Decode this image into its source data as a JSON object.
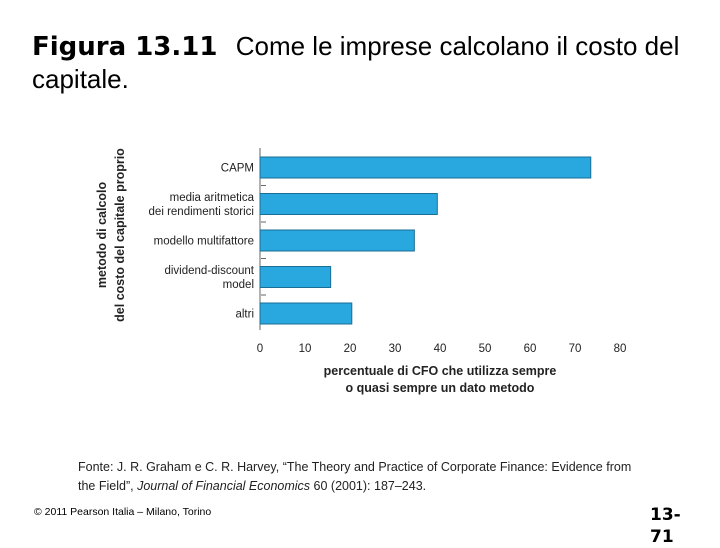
{
  "slide": {
    "figure_label": "Figura 13.11",
    "caption": "Come le imprese calcolano il costo del capitale.",
    "source_prefix": "Fonte: J. R. Graham e C. R. Harvey, “The Theory and Practice of Corporate Finance: Evidence from the Field”, ",
    "source_journal": "Journal of Financial Economics",
    "source_suffix": " 60 (2001): 187–243.",
    "copyright": "© 2011 Pearson Italia – Milano, Torino",
    "page_number_line1": "13-",
    "page_number_line2": "71"
  },
  "chart_data": {
    "type": "bar",
    "orientation": "horizontal",
    "categories": [
      [
        "CAPM"
      ],
      [
        "media aritmetica",
        "dei rendimenti storici"
      ],
      [
        "modello multifattore"
      ],
      [
        "dividend-discount",
        "model"
      ],
      [
        "altri"
      ]
    ],
    "values": [
      73.5,
      39.4,
      34.3,
      15.7,
      20.4
    ],
    "xlim": [
      0,
      80
    ],
    "xticks": [
      0,
      10,
      20,
      30,
      40,
      50,
      60,
      70,
      80
    ],
    "xlabel": [
      "percentuale di CFO che utilizza sempre",
      "o quasi sempre un dato metodo"
    ],
    "ylabel": [
      "metodo di calcolo",
      "del costo del capitale proprio"
    ],
    "bar_color": "#29a8e0",
    "bar_edge_color": "#1a6d94"
  }
}
